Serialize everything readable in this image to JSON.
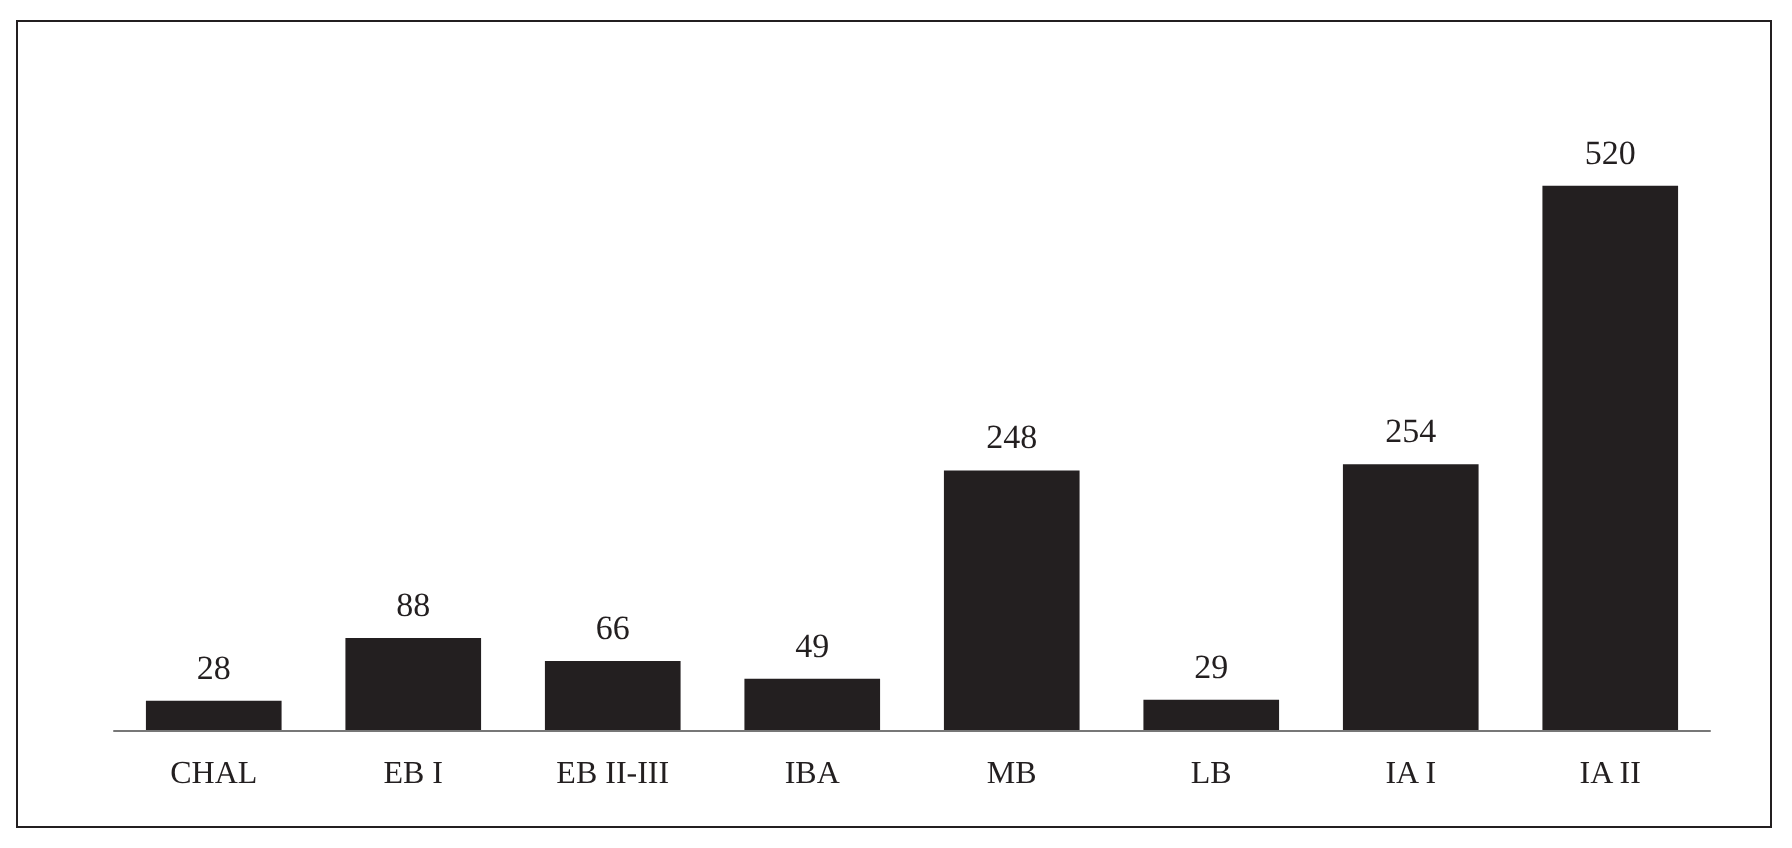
{
  "chart_data": {
    "type": "bar",
    "categories": [
      "CHAL",
      "EB I",
      "EB II-III",
      "IBA",
      "MB",
      "LB",
      "IA I",
      "IA II"
    ],
    "values": [
      28,
      88,
      66,
      49,
      248,
      29,
      254,
      520
    ],
    "color": "#231f20",
    "data_labels": true
  }
}
